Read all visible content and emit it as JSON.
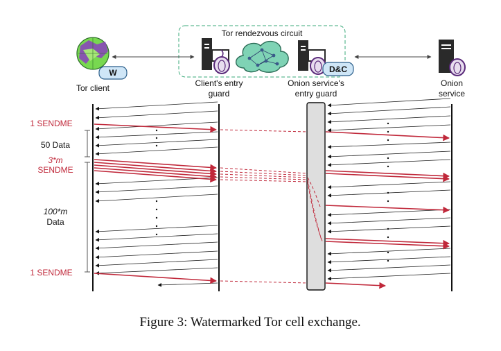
{
  "diagram": {
    "circuit_title": "Tor rendezvous circuit",
    "nodes": {
      "client": "Tor client",
      "client_guard_line1": "Client's entry",
      "client_guard_line2": "guard",
      "os_guard_line1": "Onion service's",
      "os_guard_line2": "entry guard",
      "onion_line1": "Onion",
      "onion_line2": "service"
    },
    "badges": {
      "watermarker": "W",
      "detector": "D&C"
    },
    "left_annotations": {
      "sendme_first": "1 SENDME",
      "data_50": "50 Data",
      "sendme_3m_line1": "3*m",
      "sendme_3m_line2": "SENDME",
      "data_100m_line1": "100*m",
      "data_100m_line2": "Data",
      "sendme_last": "1 SENDME"
    },
    "colors": {
      "sendme": "#c0283a",
      "data": "#222222",
      "cloud": "#7fd3b5",
      "circuit_border": "#3aaa7a"
    }
  },
  "caption": "Figure 3: Watermarked Tor cell exchange."
}
